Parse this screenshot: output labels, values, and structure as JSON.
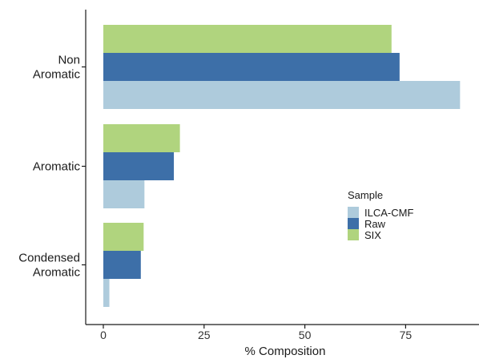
{
  "chart_data": {
    "type": "bar",
    "orientation": "horizontal",
    "categories": [
      "Non Aromatic",
      "Aromatic",
      "Condensed Aromatic"
    ],
    "category_lines": [
      [
        "Non",
        "Aromatic"
      ],
      [
        "Aromatic"
      ],
      [
        "Condensed",
        "Aromatic"
      ]
    ],
    "series": [
      {
        "name": "ILCA-CMF",
        "color": "#aecbdc",
        "values": [
          88.5,
          10.2,
          1.5
        ]
      },
      {
        "name": "Raw",
        "color": "#3d6fa8",
        "values": [
          73.5,
          17.5,
          9.3
        ]
      },
      {
        "name": "SIX",
        "color": "#b0d47e",
        "values": [
          71.5,
          19.0,
          10.0
        ]
      }
    ],
    "title": "",
    "xlabel": "% Composition",
    "ylabel": "",
    "xlim": [
      0,
      90
    ],
    "xticks": [
      0,
      25,
      50,
      75
    ],
    "grid": false,
    "legend": {
      "title": "Sample",
      "placement": "right-middle",
      "order": [
        "ILCA-CMF",
        "Raw",
        "SIX"
      ]
    }
  }
}
